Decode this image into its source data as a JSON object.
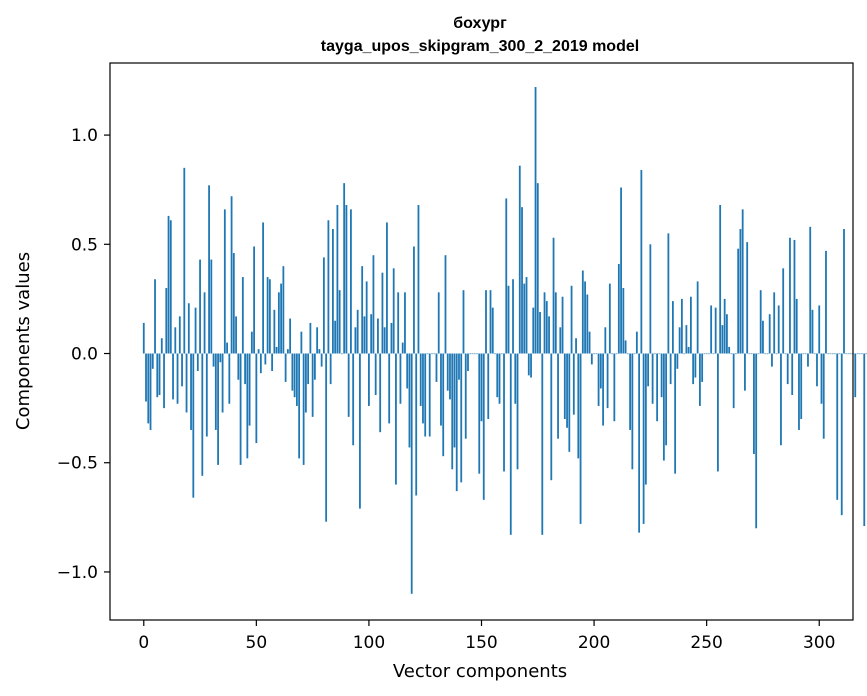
{
  "chart_data": {
    "type": "bar",
    "title_line1": "бохург",
    "title_line2": "tayga_upos_skipgram_300_2_2019 model",
    "xlabel": "Vector components",
    "ylabel": "Components values",
    "xlim": [
      -15,
      315
    ],
    "ylim": [
      -1.22,
      1.33
    ],
    "x_ticks": [
      0,
      50,
      100,
      150,
      200,
      250,
      300
    ],
    "x_tick_labels": [
      "0",
      "50",
      "100",
      "150",
      "200",
      "250",
      "300"
    ],
    "y_ticks": [
      -1.0,
      -0.5,
      0.0,
      0.5,
      1.0
    ],
    "y_tick_labels": [
      "−1.0",
      "−0.5",
      "0.0",
      "0.5",
      "1.0"
    ],
    "bar_color": "#1f77b4",
    "values": [
      0.14,
      -0.22,
      -0.32,
      -0.35,
      -0.07,
      0.34,
      -0.2,
      -0.19,
      0.07,
      -0.25,
      0.3,
      0.63,
      0.61,
      -0.21,
      0.12,
      -0.23,
      0.17,
      -0.15,
      0.85,
      -0.27,
      0.23,
      -0.35,
      -0.66,
      0.21,
      -0.08,
      0.43,
      -0.56,
      0.28,
      -0.38,
      0.77,
      0.43,
      -0.06,
      -0.35,
      -0.51,
      -0.04,
      -0.27,
      0.66,
      0.05,
      -0.23,
      0.72,
      0.46,
      0.17,
      -0.12,
      -0.51,
      0.35,
      -0.14,
      -0.48,
      -0.33,
      0.1,
      0.49,
      -0.41,
      0.02,
      -0.09,
      0.6,
      -0.05,
      0.35,
      0.34,
      -0.08,
      0.2,
      0.03,
      0.28,
      0.32,
      0.4,
      -0.13,
      0.02,
      0.16,
      -0.17,
      -0.2,
      -0.24,
      -0.48,
      0.1,
      -0.51,
      -0.27,
      -0.14,
      0.14,
      -0.29,
      -0.12,
      0.12,
      0.02,
      -0.06,
      0.44,
      -0.77,
      0.61,
      -0.14,
      0.57,
      0.15,
      0.68,
      0.29,
      0.0,
      0.78,
      0.68,
      -0.29,
      0.66,
      -0.42,
      0.12,
      0.2,
      -0.71,
      0.4,
      0.17,
      0.33,
      -0.24,
      0.18,
      0.45,
      -0.19,
      0.16,
      -0.36,
      0.37,
      0.12,
      0.6,
      -0.32,
      0.14,
      0.39,
      -0.6,
      0.28,
      -0.23,
      0.05,
      0.28,
      -0.16,
      -0.43,
      -1.1,
      0.49,
      -0.65,
      0.68,
      -0.24,
      -0.32,
      -0.38,
      0.0,
      -0.38,
      0.0,
      0.0,
      -0.13,
      0.28,
      -0.33,
      -0.47,
      0.45,
      -0.17,
      -0.21,
      -0.53,
      -0.43,
      -0.63,
      -0.12,
      -0.59,
      0.29,
      -0.39,
      -0.08,
      0.0,
      0.0,
      0.0,
      0.0,
      -0.55,
      -0.31,
      -0.67,
      0.29,
      -0.3,
      0.29,
      0.21,
      0.0,
      -0.2,
      -0.23,
      0.0,
      -0.54,
      0.71,
      0.31,
      -0.83,
      0.34,
      -0.23,
      -0.53,
      0.86,
      0.67,
      0.32,
      0.35,
      -0.1,
      -0.11,
      0.21,
      1.22,
      0.78,
      0.19,
      -0.83,
      0.28,
      0.24,
      0.17,
      -0.58,
      0.53,
      0.28,
      -0.39,
      0.12,
      0.26,
      -0.3,
      -0.34,
      -0.45,
      0.31,
      -0.28,
      0.07,
      -0.48,
      -0.78,
      0.38,
      0.33,
      0.27,
      0.1,
      -0.05,
      0.0,
      0.0,
      -0.24,
      -0.16,
      -0.33,
      0.12,
      -0.25,
      0.32,
      0.0,
      -0.31,
      0.0,
      0.41,
      0.76,
      0.3,
      0.06,
      0.0,
      -0.35,
      -0.53,
      0.0,
      0.1,
      -0.82,
      0.84,
      -0.78,
      -0.6,
      -0.15,
      0.5,
      -0.23,
      0.0,
      -0.31,
      0.0,
      -0.2,
      -0.49,
      -0.42,
      0.55,
      -0.14,
      0.24,
      -0.55,
      -0.07,
      0.12,
      0.25,
      0.0,
      0.13,
      0.03,
      0.26,
      -0.14,
      -0.11,
      0.33,
      -0.24,
      -0.13,
      0.0,
      0.0,
      0.0,
      0.22,
      0.0,
      0.21,
      -0.54,
      0.68,
      0.13,
      0.25,
      0.18,
      0.03,
      0.0,
      -0.25,
      0.0,
      0.48,
      0.57,
      0.66,
      -0.17,
      0.51,
      0.0,
      0.0,
      -0.46,
      -0.8,
      0.0,
      0.29,
      0.15,
      0.0,
      0.0,
      0.18,
      -0.06,
      0.28,
      0.0,
      0.22,
      -0.42,
      0.39,
      0.0,
      -0.14,
      0.53,
      -0.19,
      0.52,
      0.25,
      -0.35,
      -0.3,
      0.0,
      0.0,
      -0.06,
      0.58,
      0.2,
      0.0,
      -0.15,
      0.22,
      -0.23,
      -0.39,
      0.47,
      0.0,
      0.0,
      0.0,
      0.0,
      -0.67,
      0.0,
      -0.74,
      0.57,
      0.0,
      0.0,
      0.0,
      0.0,
      -0.2,
      0.0,
      0.0,
      0.0,
      -0.79,
      0.0
    ]
  }
}
